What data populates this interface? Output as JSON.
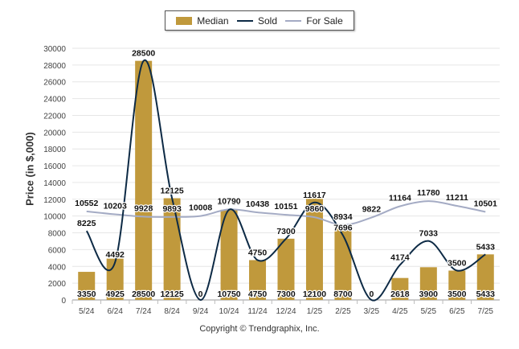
{
  "legend": {
    "median_label": "Median",
    "sold_label": "Sold",
    "forsale_label": "For Sale"
  },
  "colors": {
    "median": "#c0993c",
    "sold": "#0d2a45",
    "forsale": "#a4abc4",
    "grid": "#e6e6e6"
  },
  "copyright": "Copyright © Trendgraphix, Inc.",
  "chart_data": {
    "type": "bar",
    "ylabel": "Price (in $,000)",
    "xlabel": "",
    "ylim": [
      0,
      30000
    ],
    "yticks": [
      0,
      2000,
      4000,
      6000,
      8000,
      10000,
      12000,
      14000,
      16000,
      18000,
      20000,
      22000,
      24000,
      26000,
      28000,
      30000
    ],
    "categories": [
      "5/24",
      "6/24",
      "7/24",
      "8/24",
      "9/24",
      "10/24",
      "11/24",
      "12/24",
      "1/25",
      "2/25",
      "3/25",
      "4/25",
      "5/25",
      "6/25",
      "7/25"
    ],
    "series": [
      {
        "name": "Median",
        "type": "bar",
        "values": [
          3350,
          4925,
          28500,
          12125,
          0,
          10750,
          4750,
          7300,
          12100,
          8700,
          0,
          2618,
          3900,
          3500,
          5433
        ]
      },
      {
        "name": "Sold",
        "type": "line",
        "values": [
          8225,
          4492,
          28500,
          12125,
          0,
          10750,
          4750,
          7300,
          11617,
          7696,
          0,
          4174,
          7033,
          3500,
          5433
        ]
      },
      {
        "name": "For Sale",
        "type": "line",
        "values": [
          10552,
          10203,
          9928,
          9893,
          10008,
          10790,
          10438,
          10151,
          9860,
          8934,
          9822,
          11164,
          11780,
          11211,
          10501
        ]
      }
    ]
  }
}
